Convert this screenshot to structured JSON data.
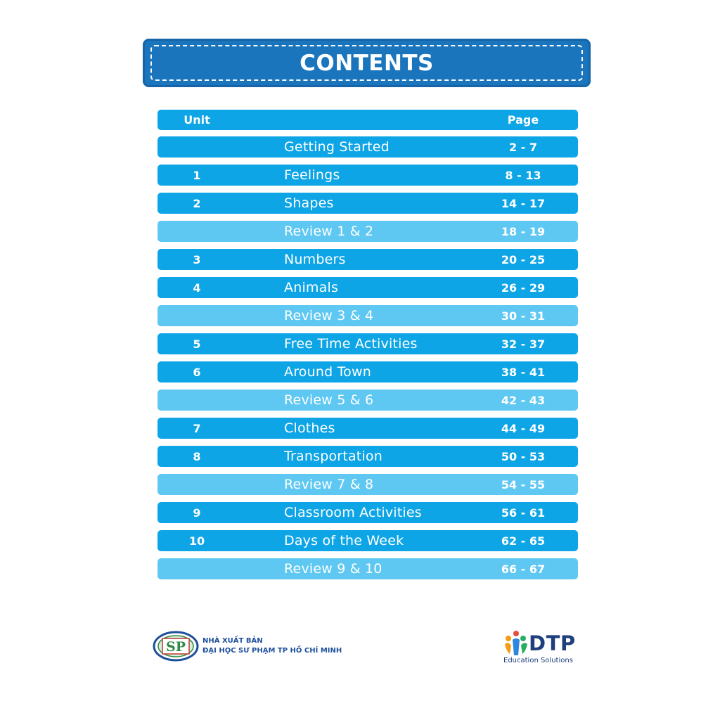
{
  "title": "CONTENTS",
  "header": {
    "unit": "Unit",
    "page": "Page"
  },
  "rows": [
    {
      "unit": "",
      "title": "Getting Started",
      "pages": "2 - 7",
      "review": false
    },
    {
      "unit": "1",
      "title": "Feelings",
      "pages": "8 - 13",
      "review": false
    },
    {
      "unit": "2",
      "title": "Shapes",
      "pages": "14 - 17",
      "review": false
    },
    {
      "unit": "",
      "title": "Review 1 & 2",
      "pages": "18 - 19",
      "review": true
    },
    {
      "unit": "3",
      "title": "Numbers",
      "pages": "20 - 25",
      "review": false
    },
    {
      "unit": "4",
      "title": "Animals",
      "pages": "26 - 29",
      "review": false
    },
    {
      "unit": "",
      "title": "Review 3 & 4",
      "pages": "30 - 31",
      "review": true
    },
    {
      "unit": "5",
      "title": "Free Time Activities",
      "pages": "32 - 37",
      "review": false
    },
    {
      "unit": "6",
      "title": "Around Town",
      "pages": "38 - 41",
      "review": false
    },
    {
      "unit": "",
      "title": "Review 5 & 6",
      "pages": "42 - 43",
      "review": true
    },
    {
      "unit": "7",
      "title": "Clothes",
      "pages": "44 - 49",
      "review": false
    },
    {
      "unit": "8",
      "title": "Transportation",
      "pages": "50 - 53",
      "review": false
    },
    {
      "unit": "",
      "title": "Review 7 & 8",
      "pages": "54 - 55",
      "review": true
    },
    {
      "unit": "9",
      "title": "Classroom Activities",
      "pages": "56 - 61",
      "review": false
    },
    {
      "unit": "10",
      "title": "Days of the Week",
      "pages": "62 - 65",
      "review": false
    },
    {
      "unit": "",
      "title": "Review 9 & 10",
      "pages": "66 - 67",
      "review": true
    }
  ],
  "footer": {
    "publisher_logo_text": "SP",
    "publisher_line1": "NHÀ XUẤT BẢN",
    "publisher_line2": "ĐẠI HỌC SƯ PHẠM TP HỒ CHÍ MINH",
    "brand": "DTP",
    "brand_sub": "Education Solutions"
  },
  "colors": {
    "banner": "#1a75bd",
    "row": "#0ea5e6",
    "review_row": "#5ec8f2",
    "publisher_text": "#1d4f9c",
    "brand_text": "#1e3f7c"
  }
}
